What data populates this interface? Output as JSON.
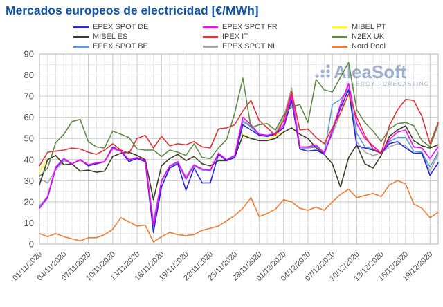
{
  "title": "Mercados europeos de electricidad [€/MWh]",
  "watermark": {
    "name": "AleaSoft",
    "tagline": "ENERGY FORECASTING",
    "color": "#8ba3c4"
  },
  "legend": {
    "grid": [
      [
        "EPEX SPOT DE",
        "EPEX SPOT FR",
        "MIBEL PT"
      ],
      [
        "MIBEL ES",
        "IPEX IT",
        "N2EX UK"
      ],
      [
        "EPEX SPOT BE",
        "EPEX SPOT NL",
        "Nord Pool"
      ]
    ]
  },
  "chart_data": {
    "type": "line",
    "title": "Mercados europeos de electricidad [€/MWh]",
    "xlabel": "",
    "ylabel": "",
    "ylim": [
      0,
      90
    ],
    "y_ticks": [
      0,
      10,
      20,
      30,
      40,
      50,
      60,
      70,
      80,
      90
    ],
    "grid": "major and minor, light gray, minor y every 5, vertical line every day",
    "n_days": 50,
    "x_start": "01/11/2020",
    "x_end": "20/12/2020",
    "x_tick_labels": [
      "01/11/2020",
      "04/11/2020",
      "07/11/2020",
      "10/11/2020",
      "13/11/2020",
      "16/11/2020",
      "19/11/2020",
      "22/11/2020",
      "25/11/2020",
      "28/11/2020",
      "01/12/2020",
      "04/12/2020",
      "07/12/2020",
      "10/12/2020",
      "13/12/2020",
      "16/12/2020",
      "19/12/2020"
    ],
    "x_tick_day_indices": [
      0,
      3,
      6,
      9,
      12,
      15,
      18,
      21,
      24,
      27,
      30,
      33,
      36,
      39,
      42,
      45,
      48
    ],
    "legend_position": "top, 3 columns",
    "series": [
      {
        "name": "MIBEL PT",
        "color": "#ffff00",
        "values": [
          34.5,
          40,
          42,
          37.5,
          38,
          34.5,
          35,
          34,
          34.5,
          41.5,
          43,
          43.5,
          42,
          40,
          21,
          37,
          40.5,
          42.5,
          39.5,
          41.5,
          38,
          37,
          39.5,
          39.5,
          41,
          52,
          50,
          49,
          49,
          51.5,
          53,
          55,
          52,
          50,
          45.5,
          42.5,
          38,
          27,
          41,
          47,
          38,
          36,
          42,
          51,
          54,
          56,
          49,
          46.5,
          45.5,
          47
        ]
      },
      {
        "name": "EPEX SPOT NL",
        "color": "#a8a8a8",
        "values": [
          31,
          29,
          35,
          39.5,
          38,
          39.5,
          37.5,
          38,
          39,
          45,
          44,
          40,
          40.5,
          39,
          11.5,
          29.5,
          36.5,
          38.5,
          32,
          37.5,
          35.5,
          35,
          42.5,
          39.5,
          41.5,
          58.5,
          56,
          52,
          51.5,
          52.5,
          60,
          74,
          46,
          46,
          46.5,
          43.5,
          52,
          62,
          75,
          48.5,
          43.5,
          42,
          43,
          46,
          47.5,
          46.5,
          43,
          43,
          34.5,
          42.5
        ]
      },
      {
        "name": "EPEX SPOT BE",
        "color": "#5b9bd5",
        "values": [
          18,
          22.5,
          36,
          40,
          38,
          40,
          37.5,
          38,
          39,
          45.5,
          44,
          40,
          40.5,
          39,
          8.5,
          29.5,
          37,
          38.5,
          30.5,
          37,
          35,
          34.5,
          43,
          39.5,
          41.5,
          58,
          55.5,
          51.5,
          51,
          52,
          56.5,
          69,
          45.5,
          45.5,
          46,
          43,
          66,
          68.5,
          73,
          52.5,
          46,
          45,
          43,
          48.5,
          50.5,
          50.5,
          44,
          43.5,
          36.5,
          43.5
        ]
      },
      {
        "name": "MIBEL ES",
        "color": "#3a3a3a",
        "values": [
          28,
          40,
          42,
          37.5,
          38,
          34.5,
          35,
          34,
          34.5,
          41.5,
          43,
          43.5,
          42,
          40,
          21,
          37,
          40.5,
          42.5,
          39.5,
          41.5,
          38,
          37,
          39.5,
          39.5,
          41,
          51.5,
          50,
          49,
          49,
          50,
          53,
          55,
          52,
          50,
          45.5,
          42.5,
          38,
          27,
          41,
          47,
          38,
          36,
          42,
          51,
          54,
          56,
          49,
          46.5,
          45.5,
          47
        ]
      },
      {
        "name": "EPEX SPOT DE",
        "color": "#2727d8",
        "values": [
          17,
          22,
          36,
          40.5,
          38,
          40,
          37,
          38,
          39,
          46,
          44,
          39,
          40.5,
          39,
          5.5,
          27,
          36,
          38,
          25.5,
          36,
          29,
          29,
          42.5,
          39.5,
          41,
          56.5,
          54,
          51.5,
          51,
          52,
          55,
          68,
          45,
          44,
          44.5,
          42.5,
          53.5,
          64.5,
          73,
          46.5,
          45.5,
          44.5,
          43,
          47.5,
          48.5,
          45.5,
          43,
          43,
          32.5,
          38.5
        ]
      },
      {
        "name": "EPEX SPOT FR",
        "color": "#ff00ff",
        "values": [
          17,
          22.5,
          36.5,
          40.5,
          38,
          40,
          37.5,
          38.5,
          39,
          45.5,
          44,
          40,
          41,
          39.5,
          9,
          30,
          37,
          39,
          31,
          37.5,
          35.5,
          35,
          43,
          40,
          42,
          60,
          56.5,
          52,
          51.5,
          52.5,
          56,
          70.5,
          46,
          46,
          47,
          43,
          54,
          66,
          76,
          57,
          50,
          46.5,
          43,
          49.5,
          53,
          54,
          46,
          45.5,
          40.5,
          46
        ]
      },
      {
        "name": "IPEX IT",
        "color": "#dd3333",
        "values": [
          37,
          43.5,
          44,
          44.5,
          45.5,
          45,
          43.5,
          42.5,
          44.5,
          47.5,
          44.5,
          43,
          50,
          51.5,
          45.5,
          51,
          46.5,
          47.5,
          47,
          48.5,
          46,
          45.5,
          54.5,
          55,
          56.5,
          63,
          68,
          58.5,
          55,
          51.5,
          58.5,
          72,
          54,
          54.5,
          50.5,
          47.5,
          55,
          62,
          71,
          60,
          51.5,
          45,
          43,
          56,
          63.5,
          68.5,
          68,
          60.5,
          47.5,
          57.5
        ]
      },
      {
        "name": "N2EX UK",
        "color": "#5f8a44",
        "values": [
          32,
          36,
          48,
          52,
          58,
          59,
          48.5,
          46,
          45.5,
          53.5,
          52,
          50.5,
          45,
          44.5,
          44.5,
          41.5,
          44.5,
          43.5,
          42,
          47.5,
          41,
          40.5,
          45.5,
          49.5,
          62,
          78.5,
          55,
          56.5,
          57,
          54,
          61,
          65,
          66,
          57.5,
          78,
          73,
          72,
          79,
          86,
          63.5,
          57.5,
          53.5,
          48.5,
          54.5,
          57,
          57.5,
          56,
          49,
          46,
          56.5
        ]
      },
      {
        "name": "Nord Pool",
        "color": "#ed7d31",
        "values": [
          5,
          3.5,
          5,
          3.5,
          2.5,
          1.5,
          3,
          3,
          4.5,
          7,
          12.5,
          10.5,
          8.5,
          9,
          1,
          3.5,
          5.5,
          4.5,
          4,
          4.5,
          6.5,
          7.5,
          8.5,
          11,
          13.5,
          17,
          22,
          13,
          14.5,
          16.5,
          21,
          20,
          17,
          16,
          17.5,
          16,
          20,
          23.5,
          26,
          22,
          23,
          24,
          22.5,
          28,
          30,
          28.5,
          19,
          17,
          12.5,
          15
        ]
      }
    ]
  },
  "axis_style": {
    "tick_color": "#4d4d4d",
    "grid_major": "#c9c9c9",
    "grid_minor": "#e4e4e4",
    "spine": "#b5b5b5"
  }
}
